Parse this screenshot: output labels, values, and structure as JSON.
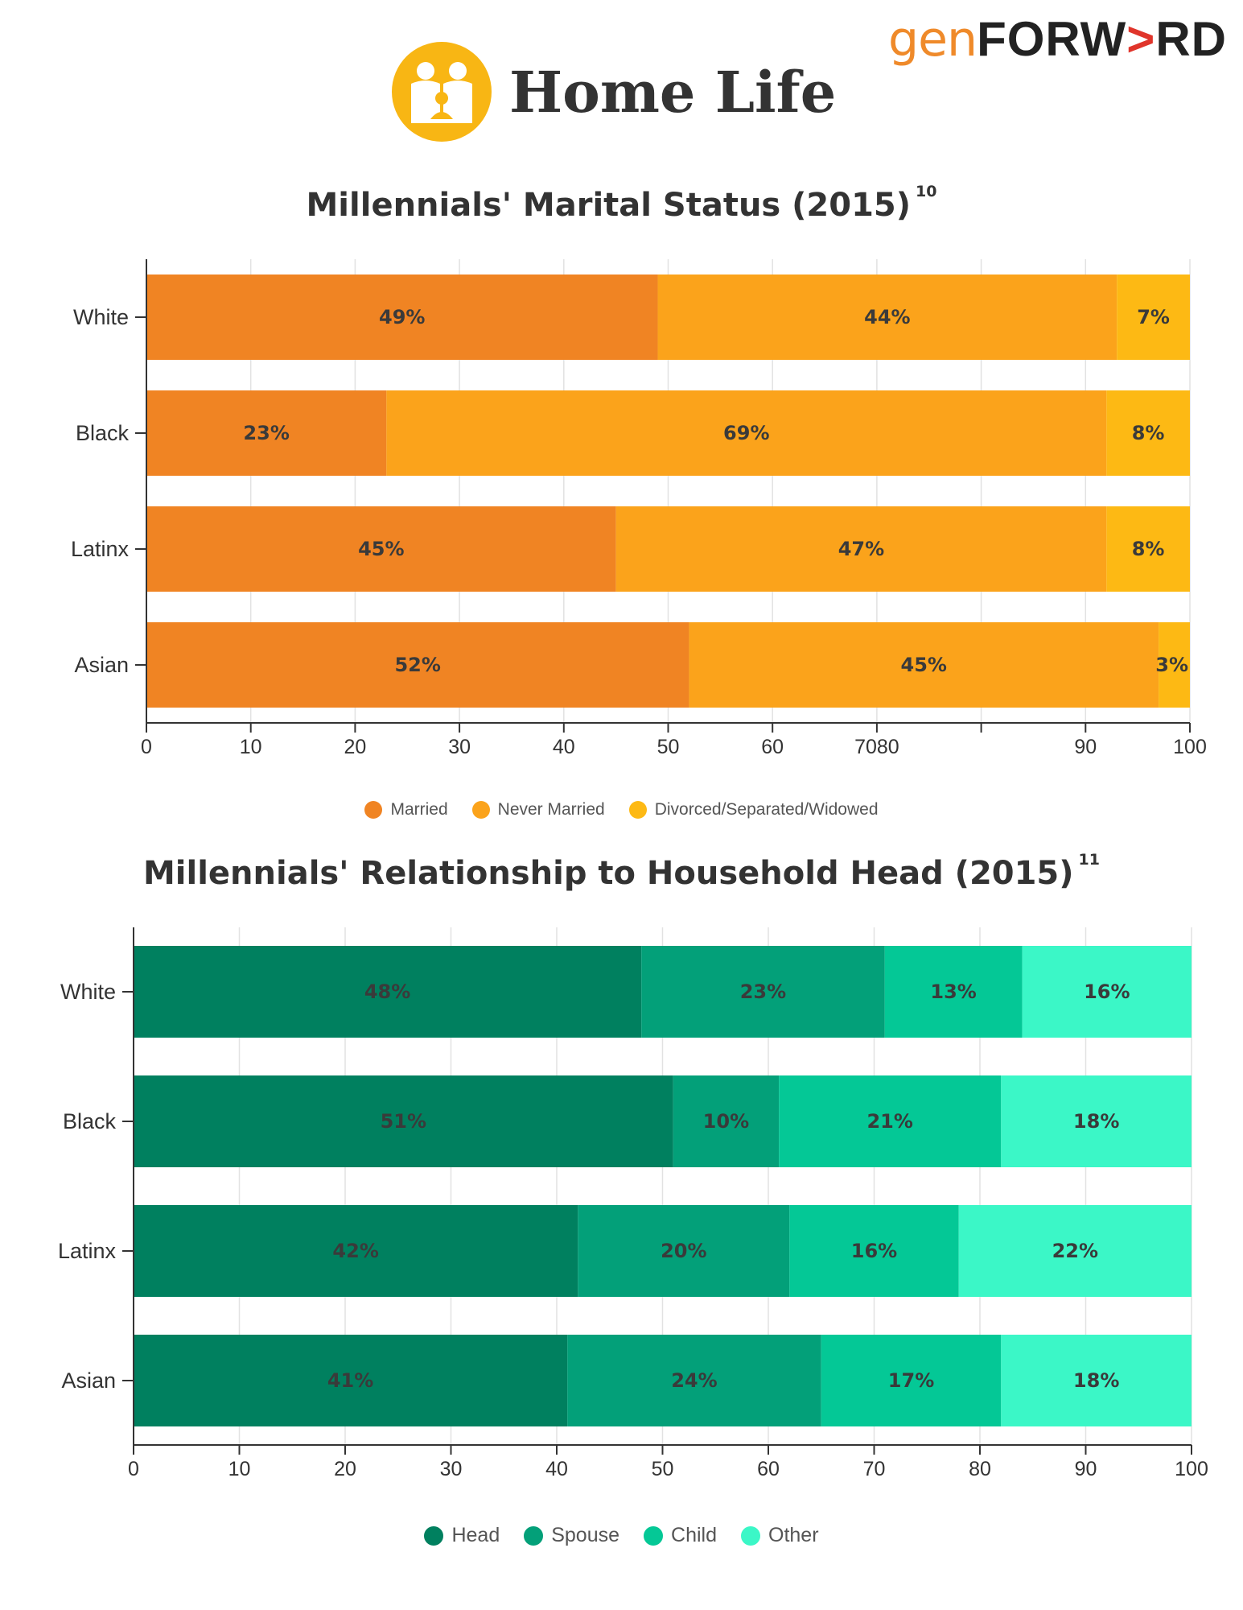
{
  "brand": {
    "gen": "gen",
    "forward_pre": "FORW",
    "forward_arrow": ">",
    "forward_post": "RD"
  },
  "header": {
    "title": "Home Life",
    "icon": "family-home-icon"
  },
  "colors": {
    "brand_orange": "#ef8a2a",
    "icon_yellow": "#f8b614",
    "brand_arrow_red": "#e0352b",
    "married": "#f08423",
    "never_married": "#fba31b",
    "divorced": "#fdb914",
    "head": "#00805f",
    "spouse": "#03a079",
    "child": "#04c896",
    "other": "#3bf7c7"
  },
  "chart_data": [
    {
      "type": "bar",
      "orientation": "horizontal",
      "stacked": true,
      "title": "Millennials' Marital Status (2015)",
      "footnote": "10",
      "categories": [
        "White",
        "Black",
        "Latinx",
        "Asian"
      ],
      "series": [
        {
          "name": "Married",
          "values": [
            49,
            23,
            45,
            52
          ],
          "labels": [
            "49%",
            "23%",
            "45%",
            "52%"
          ],
          "color": "#f08423"
        },
        {
          "name": "Never Married",
          "values": [
            44,
            69,
            47,
            45
          ],
          "labels": [
            "44%",
            "69%",
            "47%",
            "45%"
          ],
          "color": "#fba31b"
        },
        {
          "name": "Divorced/Separated/Widowed",
          "values": [
            7,
            8,
            8,
            3
          ],
          "labels": [
            "7%",
            "8%",
            "8%",
            "3%"
          ],
          "color": "#fdb914"
        }
      ],
      "xlim": [
        0,
        100
      ],
      "tick_labels": [
        "0",
        "10",
        "20",
        "30",
        "40",
        "50",
        "60",
        "7080",
        "",
        "90",
        "100"
      ],
      "grid": true,
      "legend_position": "bottom"
    },
    {
      "type": "bar",
      "orientation": "horizontal",
      "stacked": true,
      "title": "Millennials' Relationship to Household Head (2015)",
      "footnote": "11",
      "categories": [
        "White",
        "Black",
        "Latinx",
        "Asian"
      ],
      "series": [
        {
          "name": "Head",
          "values": [
            48,
            51,
            42,
            41
          ],
          "labels": [
            "48%",
            "51%",
            "42%",
            "41%"
          ],
          "color": "#00805f"
        },
        {
          "name": "Spouse",
          "values": [
            23,
            10,
            20,
            24
          ],
          "labels": [
            "23%",
            "10%",
            "20%",
            "24%"
          ],
          "color": "#03a079"
        },
        {
          "name": "Child",
          "values": [
            13,
            21,
            16,
            17
          ],
          "labels": [
            "13%",
            "21%",
            "16%",
            "17%"
          ],
          "color": "#04c896"
        },
        {
          "name": "Other",
          "values": [
            16,
            18,
            22,
            18
          ],
          "labels": [
            "16%",
            "18%",
            "22%",
            "18%"
          ],
          "color": "#3bf7c7"
        }
      ],
      "xlim": [
        0,
        100
      ],
      "tick_labels": [
        "0",
        "10",
        "20",
        "30",
        "40",
        "50",
        "60",
        "70",
        "80",
        "90",
        "100"
      ],
      "grid": true,
      "legend_position": "bottom"
    }
  ]
}
